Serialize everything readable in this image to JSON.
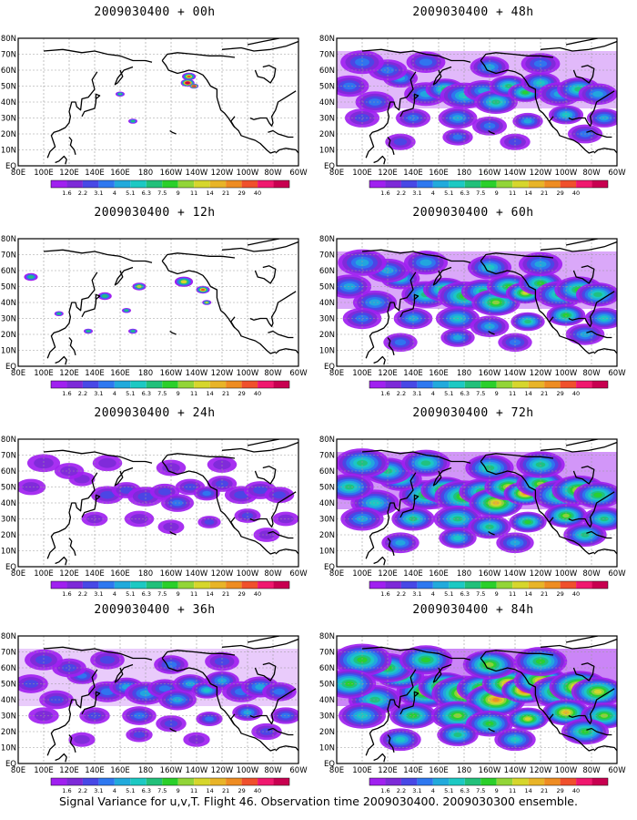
{
  "colors": {
    "palette": [
      "#a020f0",
      "#7d2ad8",
      "#4848e6",
      "#2e78f0",
      "#22aadc",
      "#1cc9c3",
      "#22c07a",
      "#2ad02a",
      "#92d538",
      "#d6d62c",
      "#e8b428",
      "#ee8c22",
      "#f0502c",
      "#f0186e",
      "#c80050"
    ],
    "coast": "#000000",
    "grid": "#999999"
  },
  "colorbar": {
    "labels": [
      "1.6",
      "2.2",
      "3.1",
      "4",
      "5.1",
      "6.3",
      "7.5",
      "9",
      "11",
      "14",
      "21",
      "29",
      "40"
    ]
  },
  "axes": {
    "lon_labels": [
      "80E",
      "100E",
      "120E",
      "140E",
      "160E",
      "180",
      "160W",
      "140W",
      "120W",
      "100W",
      "80W",
      "60W"
    ],
    "lat_labels": [
      "80N",
      "70N",
      "60N",
      "50N",
      "40N",
      "30N",
      "20N",
      "10N",
      "EQ"
    ]
  },
  "panels": [
    {
      "title": "2009030400 + 00h",
      "intensity": 0
    },
    {
      "title": "2009030400 + 12h",
      "intensity": 1
    },
    {
      "title": "2009030400 + 24h",
      "intensity": 2
    },
    {
      "title": "2009030400 + 36h",
      "intensity": 3
    },
    {
      "title": "2009030400 + 48h",
      "intensity": 4
    },
    {
      "title": "2009030400 + 60h",
      "intensity": 5
    },
    {
      "title": "2009030400 + 72h",
      "intensity": 6
    },
    {
      "title": "2009030400 + 84h",
      "intensity": 7
    }
  ],
  "caption": "Signal Variance for u,v,T. Flight 46. Observation time 2009030400. 2009030300 ensemble."
}
